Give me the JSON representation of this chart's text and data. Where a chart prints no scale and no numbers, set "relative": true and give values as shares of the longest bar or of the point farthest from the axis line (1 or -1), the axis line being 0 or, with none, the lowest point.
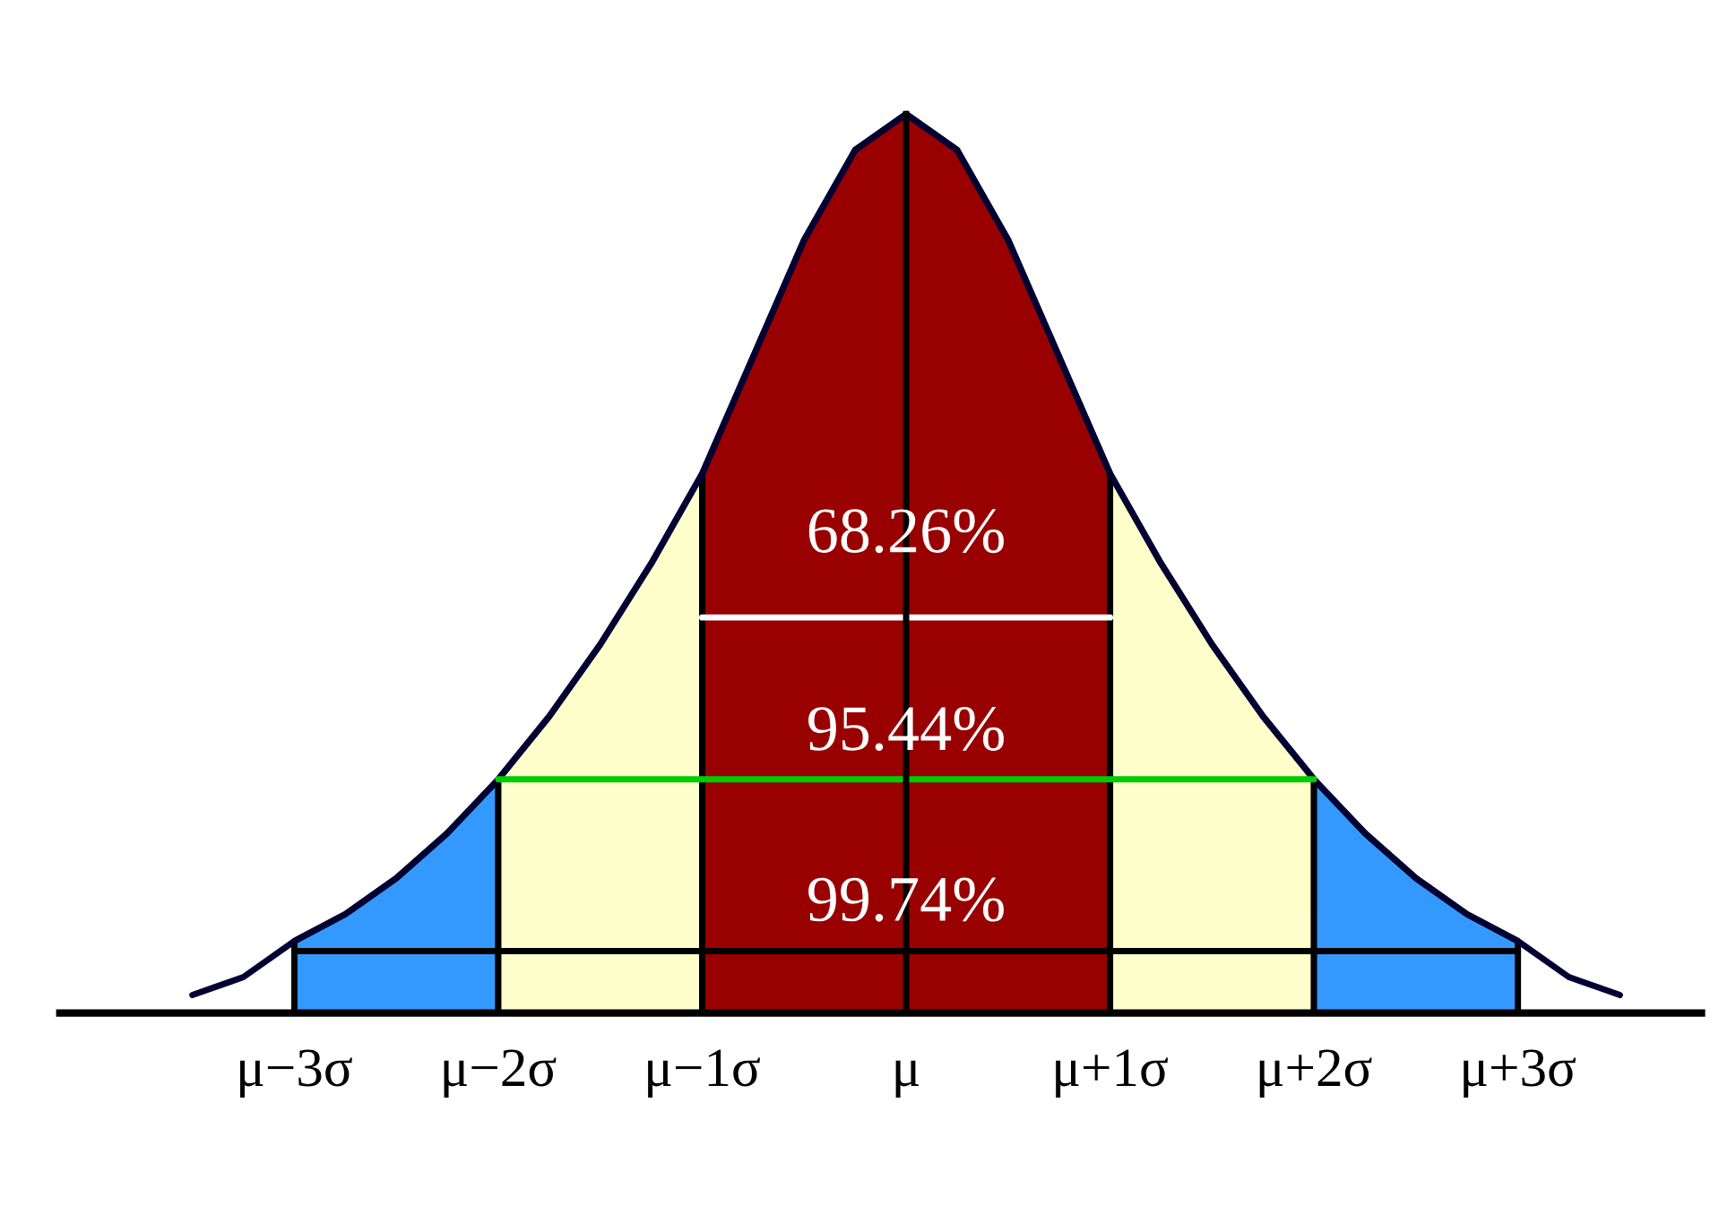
{
  "chart_data": {
    "type": "area",
    "relative": true,
    "tick_labels": "x",
    "categories": [
      null,
      null,
      "μ−3σ",
      null,
      null,
      null,
      "μ−2σ",
      null,
      null,
      null,
      "μ−1σ",
      null,
      null,
      null,
      "μ",
      null,
      null,
      null,
      "μ+1σ",
      null,
      null,
      null,
      "μ+2σ",
      null,
      null,
      null,
      "μ+3σ",
      null,
      null
    ],
    "series": [
      {
        "color": "#3399ff",
        "values": [
          null,
          null,
          0.08,
          0.11,
          0.15,
          0.2,
          0.26,
          null,
          null,
          null,
          null,
          null,
          null,
          null,
          null,
          null,
          null,
          null,
          null,
          null,
          null,
          null,
          null,
          null,
          null,
          null,
          null,
          null,
          null
        ]
      },
      {
        "color": "#ffffcc",
        "values": [
          null,
          null,
          null,
          null,
          null,
          null,
          0.26,
          0.33,
          0.41,
          0.5,
          0.6,
          null,
          null,
          null,
          null,
          null,
          null,
          null,
          null,
          null,
          null,
          null,
          null,
          null,
          null,
          null,
          null,
          null,
          null
        ]
      },
      {
        "color": "#990000",
        "values": [
          null,
          null,
          null,
          null,
          null,
          null,
          null,
          null,
          null,
          null,
          0.6,
          0.73,
          0.86,
          0.96,
          1,
          0.96,
          0.86,
          0.73,
          0.6,
          null,
          null,
          null,
          null,
          null,
          null,
          null,
          null,
          null,
          null
        ]
      },
      {
        "color": "#ffffcc",
        "values": [
          null,
          null,
          null,
          null,
          null,
          null,
          null,
          null,
          null,
          null,
          null,
          null,
          null,
          null,
          null,
          null,
          null,
          null,
          0.6,
          0.5,
          0.41,
          0.33,
          0.26,
          null,
          null,
          null,
          null,
          null,
          null
        ]
      },
      {
        "color": "#3399ff",
        "values": [
          null,
          null,
          null,
          null,
          null,
          null,
          null,
          null,
          null,
          null,
          null,
          null,
          null,
          null,
          null,
          null,
          null,
          null,
          null,
          null,
          null,
          null,
          0.26,
          0.2,
          0.15,
          0.11,
          0.08,
          null,
          null
        ]
      },
      {
        "type": "line",
        "color": "#000033",
        "values": [
          0.02,
          0.04,
          0.08,
          0.11,
          0.15,
          0.2,
          0.26,
          0.33,
          0.41,
          0.5,
          0.6,
          0.73,
          0.86,
          0.96,
          1,
          0.96,
          0.86,
          0.73,
          0.6,
          0.5,
          0.41,
          0.33,
          0.26,
          0.2,
          0.15,
          0.11,
          0.08,
          0.04,
          0.02
        ]
      },
      {
        "type": "line",
        "color": "#ffffff",
        "values": [
          null,
          null,
          null,
          null,
          null,
          null,
          null,
          null,
          null,
          null,
          0.44,
          0.44,
          0.44,
          0.44,
          0.44,
          0.44,
          0.44,
          0.44,
          0.44,
          null,
          null,
          null,
          null,
          null,
          null,
          null,
          null,
          null,
          null
        ]
      },
      {
        "type": "line",
        "color": "#00cc00",
        "values": [
          null,
          null,
          null,
          null,
          null,
          null,
          0.26,
          0.26,
          0.26,
          0.26,
          0.26,
          0.26,
          0.26,
          0.26,
          0.26,
          0.26,
          0.26,
          0.26,
          0.26,
          0.26,
          0.26,
          0.26,
          0.26,
          null,
          null,
          null,
          null,
          null,
          null
        ]
      },
      {
        "type": "line",
        "color": "#000000",
        "values": [
          null,
          null,
          0.069,
          0.069,
          0.069,
          0.069,
          0.069,
          0.069,
          0.069,
          0.069,
          0.069,
          0.069,
          0.069,
          0.069,
          0.069,
          0.069,
          0.069,
          0.069,
          0.069,
          0.069,
          0.069,
          0.069,
          0.069,
          0.069,
          0.069,
          0.069,
          0.069,
          null,
          null
        ]
      }
    ],
    "ref_lines": [
      {
        "axis": "x",
        "value": "μ",
        "color": "#000000"
      }
    ],
    "annotations": [
      {
        "text": "68.26%",
        "x": "μ",
        "y": 0.53
      },
      {
        "text": "95.44%",
        "x": "μ",
        "y": 0.31
      },
      {
        "text": "99.74%",
        "x": "μ",
        "y": 0.12
      }
    ]
  }
}
